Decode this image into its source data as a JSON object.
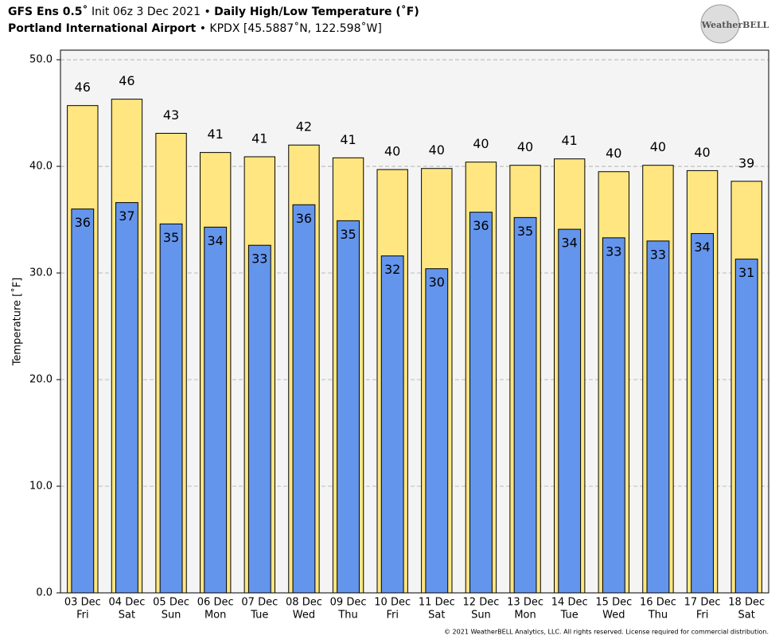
{
  "chart_data": {
    "type": "bar",
    "title_parts": [
      "GFS Ens 0.5˚",
      "Init 06z 3 Dec 2021 •",
      "Daily High/Low Temperature (˚F)"
    ],
    "subtitle_parts": [
      "Portland International Airport",
      "• KPDX [45.5887˚N, 122.598˚W]"
    ],
    "logo": "WeatherBELL",
    "y_label": "Temperature [˚F]",
    "footer": "© 2021 WeatherBELL Analytics, LLC. All rights reserved. License required for commercial distribution.",
    "categories": [
      "03 Dec",
      "04 Dec",
      "05 Dec",
      "06 Dec",
      "07 Dec",
      "08 Dec",
      "09 Dec",
      "10 Dec",
      "11 Dec",
      "12 Dec",
      "13 Dec",
      "14 Dec",
      "15 Dec",
      "16 Dec",
      "17 Dec",
      "18 Dec"
    ],
    "weekdays": [
      "Fri",
      "Sat",
      "Sun",
      "Mon",
      "Tue",
      "Wed",
      "Thu",
      "Fri",
      "Sat",
      "Sun",
      "Mon",
      "Tue",
      "Wed",
      "Thu",
      "Fri",
      "Sat"
    ],
    "series": [
      {
        "name": "High",
        "color": "#ffe680",
        "values": [
          45.7,
          46.3,
          43.1,
          41.3,
          40.9,
          42.0,
          40.8,
          39.7,
          39.8,
          40.4,
          40.1,
          40.7,
          39.5,
          40.1,
          39.6,
          38.6
        ],
        "value_labels": [
          "46",
          "46",
          "43",
          "41",
          "41",
          "42",
          "41",
          "40",
          "40",
          "40",
          "40",
          "41",
          "40",
          "40",
          "40",
          "39"
        ]
      },
      {
        "name": "Low",
        "color": "#6495ed",
        "values": [
          36.0,
          36.6,
          34.6,
          34.3,
          32.6,
          36.4,
          34.9,
          31.6,
          30.4,
          35.7,
          35.2,
          34.1,
          33.3,
          33.0,
          33.7,
          31.3
        ],
        "value_labels": [
          "36",
          "37",
          "35",
          "34",
          "33",
          "36",
          "35",
          "32",
          "30",
          "36",
          "35",
          "34",
          "33",
          "33",
          "34",
          "31"
        ]
      }
    ],
    "ylim": [
      0,
      50.9
    ],
    "yticks": [
      {
        "value": 0,
        "label": "0.0"
      },
      {
        "value": 10,
        "label": "10.0"
      },
      {
        "value": 20,
        "label": "20.0"
      },
      {
        "value": 30,
        "label": "30.0"
      },
      {
        "value": 40,
        "label": "40.0"
      },
      {
        "value": 50,
        "label": "50.0"
      }
    ],
    "grid": true
  }
}
